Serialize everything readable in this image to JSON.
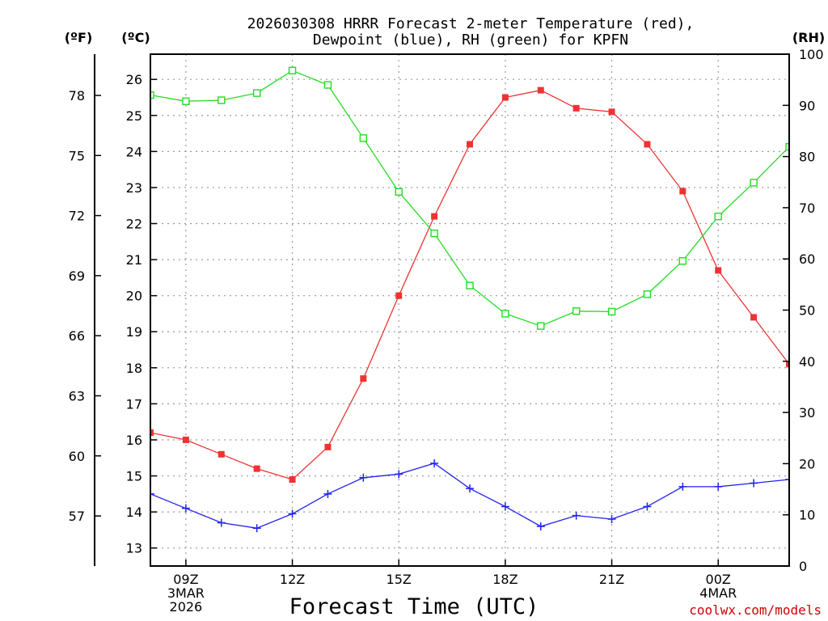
{
  "chart_data": {
    "type": "line",
    "title": "2026030308 HRRR Forecast 2-meter Temperature (red),",
    "subtitle": "Dewpoint (blue), RH (green) for KPFN",
    "xlabel": "Forecast Time (UTC)",
    "credit": "coolwx.com/models",
    "units": {
      "fahrenheit": "(ºF)",
      "celsius": "(ºC)",
      "rh": "(RH)"
    },
    "x_hours": [
      8,
      9,
      10,
      11,
      12,
      13,
      14,
      15,
      16,
      17,
      18,
      19,
      20,
      21,
      22,
      23,
      24,
      25,
      26
    ],
    "xlim": [
      8,
      26
    ],
    "x_ticks": [
      {
        "hour": 9,
        "lines": [
          "09Z",
          "3MAR",
          "2026"
        ]
      },
      {
        "hour": 12,
        "lines": [
          "12Z"
        ]
      },
      {
        "hour": 15,
        "lines": [
          "15Z"
        ]
      },
      {
        "hour": 18,
        "lines": [
          "18Z"
        ]
      },
      {
        "hour": 21,
        "lines": [
          "21Z"
        ]
      },
      {
        "hour": 24,
        "lines": [
          "00Z",
          "4MAR"
        ]
      }
    ],
    "celsius_axis": {
      "range": [
        12.5,
        26.7
      ],
      "ticks": [
        13,
        14,
        15,
        16,
        17,
        18,
        19,
        20,
        21,
        22,
        23,
        24,
        25,
        26
      ]
    },
    "fahrenheit_axis": {
      "ticks": [
        57,
        60,
        63,
        66,
        69,
        72,
        75,
        78
      ]
    },
    "rh_axis": {
      "range": [
        0,
        100
      ],
      "ticks": [
        0,
        10,
        20,
        30,
        40,
        50,
        60,
        70,
        80,
        90,
        100
      ]
    },
    "series": [
      {
        "name": "Temperature",
        "axis": "celsius",
        "color": "#ee3333",
        "marker": "filled-square",
        "values": [
          16.2,
          16.0,
          15.6,
          15.2,
          14.9,
          15.8,
          17.7,
          20.0,
          22.2,
          24.2,
          25.5,
          25.7,
          25.2,
          25.1,
          24.2,
          22.9,
          20.7,
          19.4,
          18.1
        ]
      },
      {
        "name": "Dewpoint",
        "axis": "celsius",
        "color": "#2222ee",
        "marker": "plus",
        "values": [
          14.5,
          14.1,
          13.7,
          13.55,
          13.95,
          14.5,
          14.95,
          15.05,
          15.35,
          14.65,
          14.15,
          13.6,
          13.9,
          13.8,
          14.15,
          14.7,
          14.7,
          14.8,
          14.9
        ]
      },
      {
        "name": "RH",
        "axis": "rh",
        "color": "#22dd22",
        "marker": "open-square",
        "values": [
          92,
          90.8,
          91,
          92.4,
          96.8,
          94,
          83.6,
          73.1,
          65,
          54.8,
          49.3,
          46.9,
          49.8,
          49.7,
          53.1,
          59.6,
          68.3,
          74.9,
          81.9
        ]
      }
    ]
  }
}
